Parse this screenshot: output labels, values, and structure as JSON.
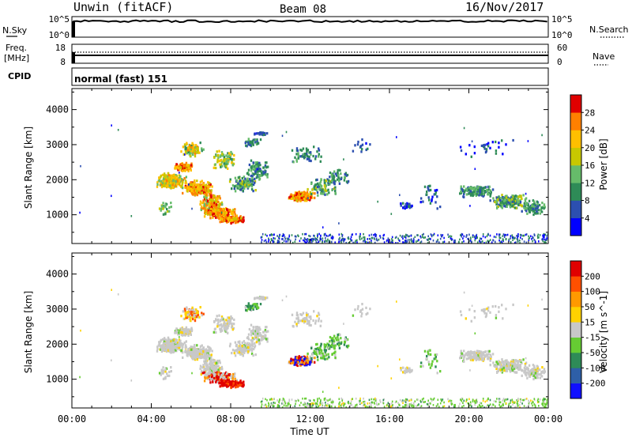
{
  "header": {
    "station": "Unwin (fitACF)",
    "beam": "Beam 08",
    "date": "16/Nov/2017"
  },
  "status_panels": {
    "nsky": {
      "label": "N.Sky",
      "right_label": "N.Search",
      "ticks_left": [
        "10^5",
        "10^0"
      ],
      "ticks_right": [
        "10^5",
        "10^0"
      ]
    },
    "freq": {
      "label_line1": "Freq.",
      "label_line2": "[MHz]",
      "ticks_left": [
        "18",
        "8"
      ],
      "ticks_right": [
        "60",
        "0"
      ],
      "right_label": "Nave"
    },
    "cpid": {
      "label": "CPID",
      "value": "normal (fast) 151"
    }
  },
  "chart_data": [
    {
      "type": "heatmap",
      "name": "power",
      "ylabel": "Slant Range [km]",
      "xlabel": "Time UT",
      "x_tick_labels": [
        "00:00",
        "04:00",
        "08:00",
        "12:00",
        "16:00",
        "20:00",
        "00:00"
      ],
      "x_range_hours": [
        0,
        24
      ],
      "yticks": [
        1000,
        2000,
        3000,
        4000
      ],
      "ylim": [
        180,
        4600
      ],
      "colorbar": {
        "label": "Power [dB]",
        "range": [
          0,
          32
        ],
        "tick_labels": [
          "4",
          "8",
          "12",
          "16",
          "20",
          "24",
          "28"
        ],
        "colors": [
          "#0000ff",
          "#2c4fb0",
          "#2e8b57",
          "#66bb6a",
          "#c8c800",
          "#ffbf00",
          "#ff8000",
          "#e00000"
        ]
      }
    },
    {
      "type": "heatmap",
      "name": "velocity",
      "ylabel": "Slant Range [km]",
      "xlabel": "Time UT",
      "x_tick_labels": [
        "00:00",
        "04:00",
        "08:00",
        "12:00",
        "16:00",
        "20:00",
        "00:00"
      ],
      "x_range_hours": [
        0,
        24
      ],
      "yticks": [
        1000,
        2000,
        3000,
        4000
      ],
      "ylim": [
        180,
        4600
      ],
      "colorbar": {
        "label": "Velocity [m s^-1]",
        "tick_labels": [
          "200",
          "100",
          "50",
          "15",
          "-15",
          "-50",
          "-100",
          "-200"
        ],
        "colors": [
          "#1010ff",
          "#2e5fa8",
          "#2e8b57",
          "#66cc33",
          "#c8c8c8",
          "#ffd200",
          "#ff9900",
          "#ff5000",
          "#e00000"
        ]
      }
    }
  ]
}
